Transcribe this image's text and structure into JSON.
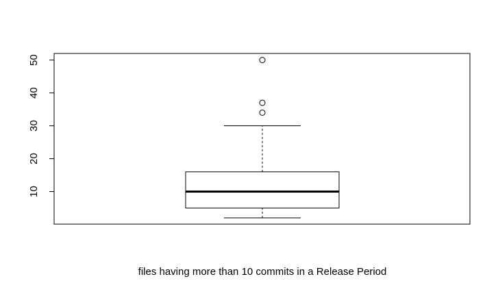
{
  "chart_data": {
    "type": "boxplot",
    "xlabel": "files having more than 10 commits in a Release Period",
    "ylabel": "",
    "title": "",
    "ylim": [
      0.1,
      52
    ],
    "yticks": [
      10,
      20,
      30,
      40,
      50
    ],
    "grid": false,
    "box": {
      "whisker_low": 2,
      "q1": 5,
      "median": 10,
      "q3": 16,
      "whisker_high": 30
    },
    "outliers": [
      34,
      37,
      50
    ],
    "colors": {
      "stroke": "#000000",
      "background": "#ffffff"
    }
  }
}
